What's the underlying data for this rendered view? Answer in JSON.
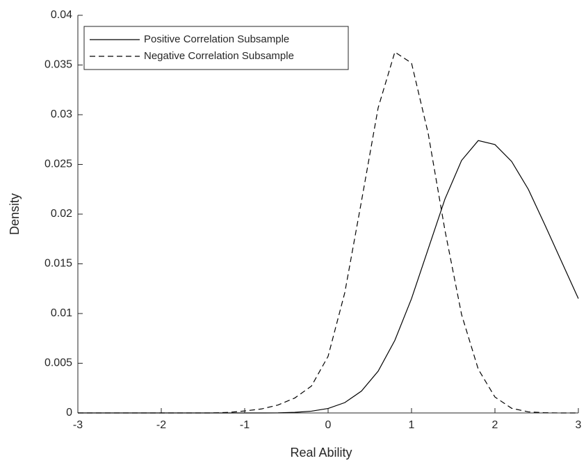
{
  "chart_data": {
    "type": "line",
    "x_label": "Real Ability",
    "y_label": "Density",
    "x": [
      -3,
      -2.8,
      -2.6,
      -2.4,
      -2.2,
      -2,
      -1.8,
      -1.6,
      -1.4,
      -1.2,
      -1,
      -0.8,
      -0.6,
      -0.4,
      -0.2,
      0,
      0.2,
      0.4,
      0.6,
      0.8,
      1,
      1.2,
      1.4,
      1.6,
      1.8,
      2,
      2.2,
      2.4,
      2.6,
      2.8,
      3
    ],
    "series": [
      {
        "name": "Positive Correlation Subsample",
        "color": "#000000",
        "linestyle": "solid",
        "values": [
          0,
          0,
          0,
          0,
          0,
          0,
          0,
          0,
          0,
          0,
          0,
          0,
          1e-05,
          6e-05,
          0.00018,
          0.00045,
          0.00104,
          0.0022,
          0.0042,
          0.0073,
          0.0115,
          0.0165,
          0.0215,
          0.0254,
          0.0274,
          0.027,
          0.0253,
          0.0225,
          0.0189,
          0.0152,
          0.0115
        ]
      },
      {
        "name": "Negative Correlation Subsample",
        "color": "#000000",
        "linestyle": "dashed",
        "values": [
          0,
          0,
          0,
          0,
          0,
          0,
          0,
          0,
          0,
          5e-05,
          0.0002,
          0.0004,
          0.0008,
          0.0015,
          0.0027,
          0.0057,
          0.0121,
          0.0213,
          0.0307,
          0.0363,
          0.0352,
          0.0281,
          0.0184,
          0.0099,
          0.0044,
          0.0016,
          0.00047,
          0.00011,
          2e-05,
          0,
          0
        ]
      }
    ],
    "xlim": [
      -3,
      3
    ],
    "xticks": [
      -3,
      -2,
      -1,
      0,
      1,
      2,
      3
    ],
    "ylim": [
      0,
      0.04
    ],
    "yticks": [
      0,
      0.005,
      0.01,
      0.015,
      0.02,
      0.025,
      0.03,
      0.035,
      0.04
    ],
    "grid": false,
    "legend_position": "northwest"
  }
}
